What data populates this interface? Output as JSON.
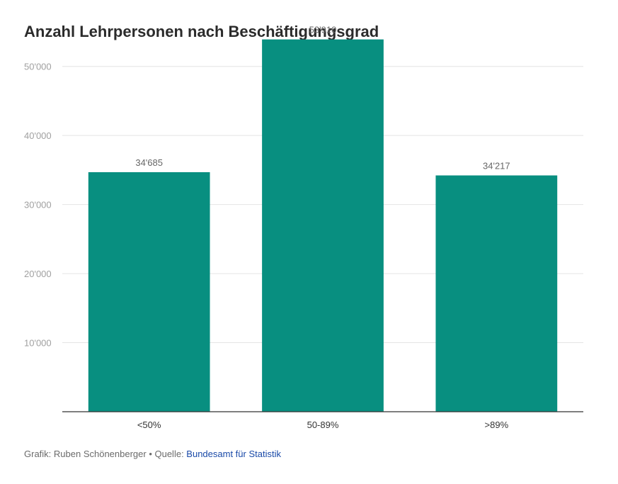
{
  "title": "Anzahl Lehrpersonen nach Beschäftigungsgrad",
  "footer": {
    "credit": "Grafik: Ruben Schönenberger • Quelle: ",
    "source_link": "Bundesamt für Statistik"
  },
  "colors": {
    "bar": "#088f80",
    "grid": "#e4e4e4",
    "axis_text": "#a0a0a0",
    "value_label": "#666666",
    "category_label": "#333333",
    "link": "#1a4aa8"
  },
  "chart_data": {
    "type": "bar",
    "title": "Anzahl Lehrpersonen nach Beschäftigungsgrad",
    "categories": [
      "<50%",
      "50-89%",
      ">89%"
    ],
    "values": [
      34685,
      53910,
      34217
    ],
    "value_labels": [
      "34'685",
      "53'910",
      "34'217"
    ],
    "yticks": [
      10000,
      20000,
      30000,
      40000,
      50000
    ],
    "ytick_labels": [
      "10'000",
      "20'000",
      "30'000",
      "40'000",
      "50'000"
    ],
    "ylim": [
      0,
      55000
    ],
    "xlabel": "",
    "ylabel": "",
    "grid": true,
    "legend": "none"
  }
}
